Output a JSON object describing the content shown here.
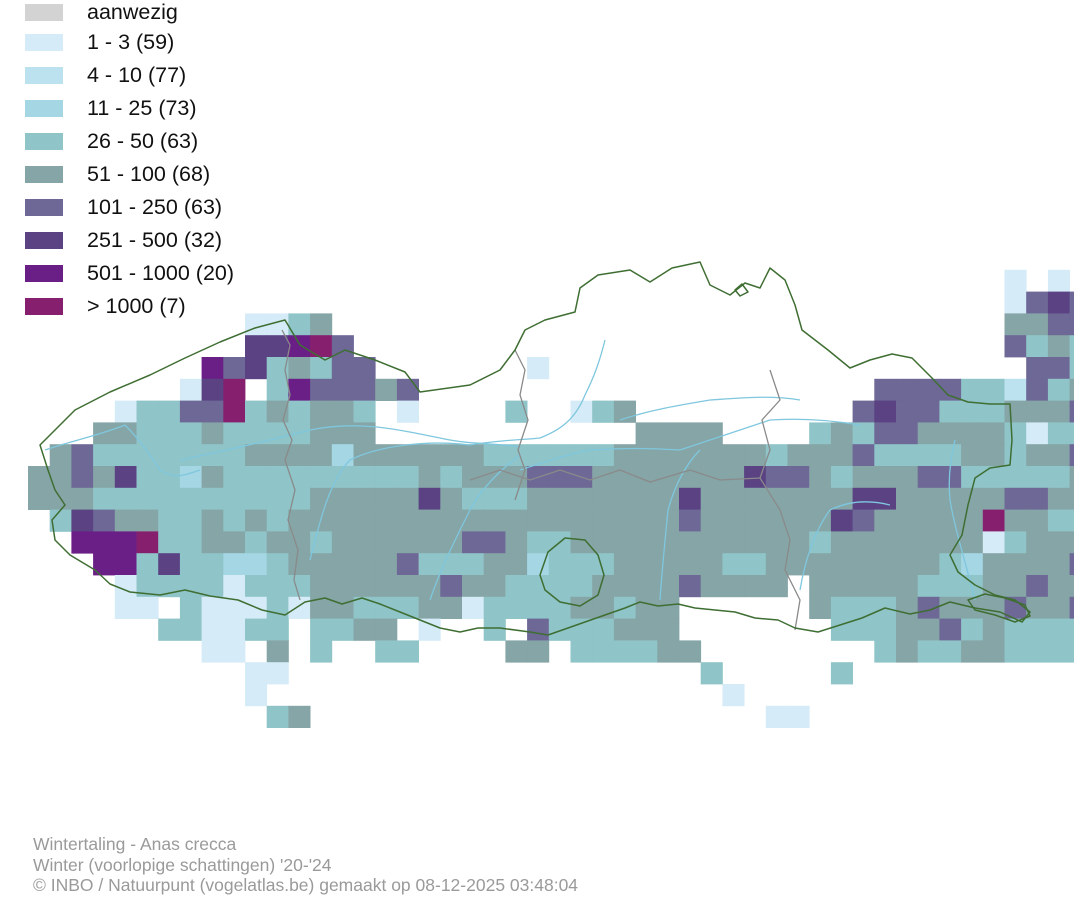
{
  "legend": {
    "items": [
      {
        "label": "aanwezig",
        "color": "#d3d3d3"
      },
      {
        "label": "1 - 3 (59)",
        "color": "#d5ebf7"
      },
      {
        "label": "4 - 10 (77)",
        "color": "#bde2ef"
      },
      {
        "label": "11 - 25 (73)",
        "color": "#a4d6e4"
      },
      {
        "label": "26 - 50 (63)",
        "color": "#8fc4c8"
      },
      {
        "label": "51 - 100 (68)",
        "color": "#86a5a6"
      },
      {
        "label": "101 - 250 (63)",
        "color": "#6d6896"
      },
      {
        "label": "251 - 500 (32)",
        "color": "#5a4283"
      },
      {
        "label": "501 - 1000 (20)",
        "color": "#6a1f86"
      },
      {
        "label": "> 1000 (7)",
        "color": "#86206e"
      }
    ]
  },
  "map": {
    "border_color": "#3f6e33",
    "river_color": "#7fc7de",
    "province_border_color": "#8a8a8a"
  },
  "caption": {
    "species": "Wintertaling - Anas crecca",
    "season": "Winter (voorlopige schattingen) '20-'24",
    "credit": "© INBO / Natuurpunt (vogelatlas.be) gemaakt op 08-12-2025 03:48:04"
  }
}
